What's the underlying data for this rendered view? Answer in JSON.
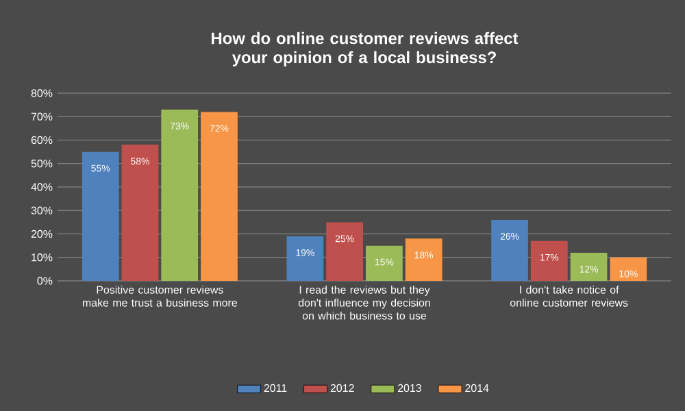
{
  "chart_data": {
    "type": "bar",
    "title": "How do online customer reviews affect your opinion of a local business?",
    "categories": [
      "Positive customer reviews make me trust a business more",
      "I read the reviews but they don't influence my decision on which business to use",
      "I don't take notice of online customer reviews"
    ],
    "series": [
      {
        "name": "2011",
        "color": "#4f81bd",
        "values": [
          55,
          19,
          26
        ],
        "value_labels": [
          "55%",
          "19%",
          "26%"
        ]
      },
      {
        "name": "2012",
        "color": "#c0504d",
        "values": [
          58,
          25,
          17
        ],
        "value_labels": [
          "58%",
          "25%",
          "17%"
        ]
      },
      {
        "name": "2013",
        "color": "#9bbb59",
        "values": [
          73,
          15,
          12
        ],
        "value_labels": [
          "73%",
          "15%",
          "12%"
        ]
      },
      {
        "name": "2014",
        "color": "#f79646",
        "values": [
          72,
          18,
          10
        ],
        "value_labels": [
          "72%",
          "18%",
          "10%"
        ]
      }
    ],
    "ylim": [
      0,
      80
    ],
    "yticks": [
      {
        "value": 0,
        "label": "0%"
      },
      {
        "value": 10,
        "label": "10%"
      },
      {
        "value": 20,
        "label": "20%"
      },
      {
        "value": 30,
        "label": "30%"
      },
      {
        "value": 40,
        "label": "40%"
      },
      {
        "value": 50,
        "label": "50%"
      },
      {
        "value": 60,
        "label": "60%"
      },
      {
        "value": 70,
        "label": "70%"
      },
      {
        "value": 80,
        "label": "80%"
      }
    ],
    "grid": "y",
    "legend": "bottom"
  }
}
